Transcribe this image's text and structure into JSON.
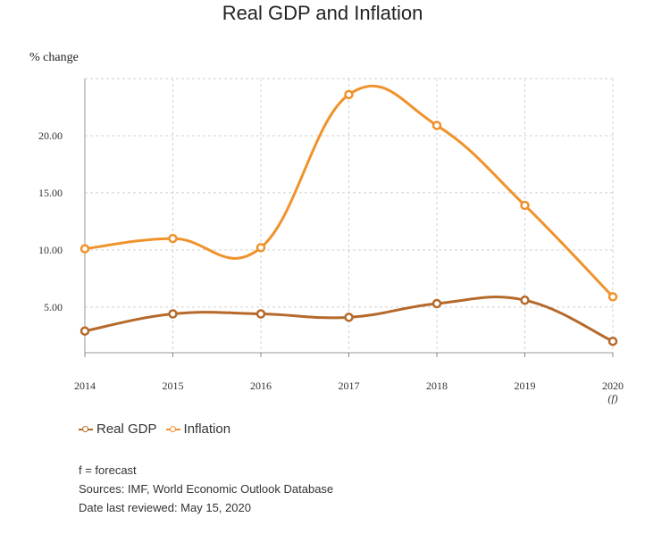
{
  "chart_data": {
    "type": "line",
    "title": "Real GDP and Inflation",
    "ylabel": "% change",
    "xlabel": "",
    "categories": [
      "2014",
      "2015",
      "2016",
      "2017",
      "2018",
      "2019",
      "2020"
    ],
    "category_notes": [
      "",
      "",
      "",
      "",
      "",
      "",
      "(f)"
    ],
    "yticks": [
      "5.00",
      "10.00",
      "15.00",
      "20.00"
    ],
    "ylim": [
      1.0,
      25.0
    ],
    "grid": true,
    "legend_position": "bottom-left",
    "series": [
      {
        "name": "Real GDP",
        "color": "#b5692b",
        "values": [
          2.9,
          4.4,
          4.4,
          4.1,
          5.3,
          5.6,
          2.0
        ]
      },
      {
        "name": "Inflation",
        "color": "#f0922b",
        "values": [
          10.1,
          11.0,
          10.2,
          23.6,
          20.9,
          13.9,
          5.9
        ]
      }
    ]
  },
  "notes": [
    "f = forecast",
    "Sources: IMF, World Economic Outlook Database",
    "Date last reviewed: May 15, 2020"
  ]
}
